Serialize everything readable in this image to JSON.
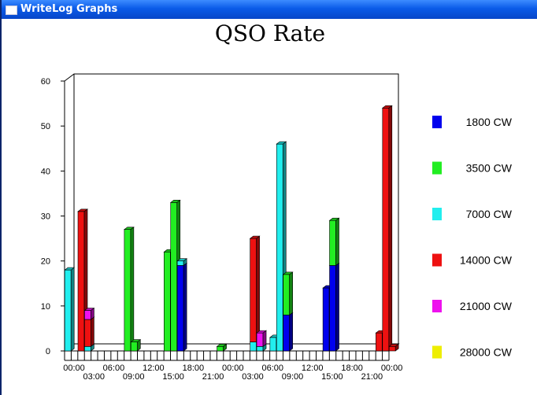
{
  "window": {
    "title": "WriteLog Graphs"
  },
  "colors": {
    "1800 CW": "#0000ee",
    "3500 CW": "#22ee22",
    "7000 CW": "#22eeee",
    "14000 CW": "#ee1111",
    "21000 CW": "#ee11ee",
    "28000 CW": "#eeee00"
  },
  "chart_data": {
    "type": "bar",
    "stacked": true,
    "three_d": true,
    "title": "QSO Rate",
    "xlabel": "",
    "ylabel": "",
    "ylim": [
      0,
      60
    ],
    "yticks": [
      0,
      10,
      20,
      30,
      40,
      50,
      60
    ],
    "x_tick_labels_row1": [
      "00:00",
      "06:00",
      "12:00",
      "18:00",
      "00:00",
      "06:00",
      "12:00",
      "18:00",
      "00:00"
    ],
    "x_tick_labels_row2": [
      "03:00",
      "09:00",
      "15:00",
      "21:00",
      "03:00",
      "09:00",
      "15:00",
      "21:00"
    ],
    "legend_position": "right",
    "series_order": [
      "1800 CW",
      "3500 CW",
      "7000 CW",
      "14000 CW",
      "21000 CW",
      "28000 CW"
    ],
    "hours": 49,
    "bars": [
      {
        "hour": 0,
        "values": {
          "7000 CW": 18
        }
      },
      {
        "hour": 2,
        "values": {
          "14000 CW": 31
        }
      },
      {
        "hour": 3,
        "values": {
          "7000 CW": 1,
          "14000 CW": 6,
          "21000 CW": 2
        }
      },
      {
        "hour": 9,
        "values": {
          "3500 CW": 27
        }
      },
      {
        "hour": 10,
        "values": {
          "3500 CW": 2
        }
      },
      {
        "hour": 15,
        "values": {
          "3500 CW": 22
        }
      },
      {
        "hour": 16,
        "values": {
          "3500 CW": 33
        }
      },
      {
        "hour": 17,
        "values": {
          "1800 CW": 19,
          "7000 CW": 1
        }
      },
      {
        "hour": 23,
        "values": {
          "3500 CW": 1
        }
      },
      {
        "hour": 28,
        "values": {
          "7000 CW": 2,
          "14000 CW": 23
        }
      },
      {
        "hour": 29,
        "values": {
          "7000 CW": 1,
          "21000 CW": 3
        }
      },
      {
        "hour": 31,
        "values": {
          "7000 CW": 3
        }
      },
      {
        "hour": 32,
        "values": {
          "7000 CW": 46
        }
      },
      {
        "hour": 33,
        "values": {
          "1800 CW": 8,
          "3500 CW": 9
        }
      },
      {
        "hour": 39,
        "values": {
          "1800 CW": 14
        }
      },
      {
        "hour": 40,
        "values": {
          "1800 CW": 19,
          "3500 CW": 10
        }
      },
      {
        "hour": 47,
        "values": {
          "14000 CW": 4
        }
      },
      {
        "hour": 48,
        "values": {
          "14000 CW": 54
        }
      },
      {
        "hour": 49,
        "values": {
          "14000 CW": 1
        }
      }
    ]
  }
}
